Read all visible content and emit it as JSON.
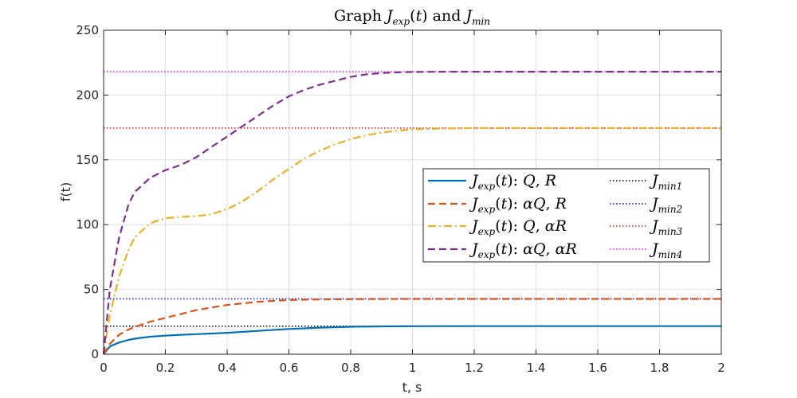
{
  "chart_data": {
    "type": "line",
    "title": "Graph J_exp(t) and J_min",
    "xlabel": "t, s",
    "ylabel": "f(t)",
    "xlim": [
      0,
      2
    ],
    "ylim": [
      0,
      250
    ],
    "xticks": [
      0,
      0.2,
      0.4,
      0.6,
      0.8,
      1,
      1.2,
      1.4,
      1.6,
      1.8,
      2
    ],
    "xtick_labels": [
      "0",
      "0.2",
      "0.4",
      "0.6",
      "0.8",
      "1",
      "1.2",
      "1.4",
      "1.6",
      "1.8",
      "2"
    ],
    "yticks": [
      0,
      50,
      100,
      150,
      200,
      250
    ],
    "ytick_labels": [
      "0",
      "50",
      "100",
      "150",
      "200",
      "250"
    ],
    "grid": true,
    "legend_position": "center-right",
    "series": [
      {
        "name": "J_exp(t): Q, R",
        "color": "#0072BD",
        "style": "solid",
        "x": [
          0,
          0.02,
          0.05,
          0.08,
          0.1,
          0.15,
          0.2,
          0.25,
          0.3,
          0.4,
          0.5,
          0.6,
          0.7,
          0.8,
          0.9,
          1.0,
          1.2,
          1.5,
          2.0
        ],
        "y": [
          0,
          6,
          9,
          11,
          12,
          13.5,
          14.3,
          15,
          15.5,
          16.5,
          18,
          19.5,
          20.5,
          21.2,
          21.5,
          21.6,
          21.7,
          21.7,
          21.7
        ]
      },
      {
        "name": "J_exp(t): αQ, R",
        "color": "#D95319",
        "style": "dashed",
        "x": [
          0,
          0.02,
          0.05,
          0.08,
          0.1,
          0.15,
          0.2,
          0.3,
          0.4,
          0.5,
          0.6,
          0.7,
          0.8,
          0.9,
          1.0,
          1.2,
          1.5,
          2.0
        ],
        "y": [
          0,
          8,
          15,
          19,
          21,
          25,
          28,
          34,
          38,
          40.5,
          41.8,
          42.3,
          42.5,
          42.6,
          42.7,
          42.7,
          42.7,
          42.7
        ]
      },
      {
        "name": "J_exp(t): Q, αR",
        "color": "#EDB120",
        "style": "dashdot",
        "x": [
          0,
          0.02,
          0.05,
          0.08,
          0.1,
          0.15,
          0.2,
          0.25,
          0.3,
          0.35,
          0.4,
          0.45,
          0.5,
          0.55,
          0.6,
          0.65,
          0.7,
          0.75,
          0.8,
          0.85,
          0.9,
          0.95,
          1.0,
          1.1,
          1.2,
          1.5,
          2.0
        ],
        "y": [
          0,
          30,
          60,
          80,
          90,
          101,
          105,
          106,
          106.5,
          108,
          112,
          118,
          126,
          135,
          143,
          151,
          157,
          162,
          166,
          169,
          171,
          172.5,
          173.5,
          174.2,
          174.5,
          174.5,
          174.5
        ]
      },
      {
        "name": "J_exp(t): αQ, αR",
        "color": "#7E2F8E",
        "style": "dashed",
        "x": [
          0,
          0.02,
          0.05,
          0.08,
          0.1,
          0.15,
          0.2,
          0.25,
          0.3,
          0.35,
          0.4,
          0.45,
          0.5,
          0.55,
          0.6,
          0.65,
          0.7,
          0.75,
          0.8,
          0.85,
          0.9,
          0.95,
          1.0,
          1.1,
          1.2,
          1.5,
          2.0
        ],
        "y": [
          0,
          50,
          90,
          115,
          125,
          136,
          142,
          146,
          152,
          160,
          168,
          176,
          184,
          192,
          199,
          204,
          208,
          211,
          214,
          216,
          217,
          217.5,
          217.8,
          218,
          218,
          218,
          218
        ]
      },
      {
        "name": "J_min1",
        "color": "#000000",
        "style": "dotted",
        "x": [
          0,
          2
        ],
        "y": [
          21.7,
          21.7
        ]
      },
      {
        "name": "J_min2",
        "color": "#0000FF",
        "style": "dotted",
        "x": [
          0,
          2
        ],
        "y": [
          42.7,
          42.7
        ]
      },
      {
        "name": "J_min3",
        "color": "#FF0000",
        "style": "dotted",
        "x": [
          0,
          2
        ],
        "y": [
          174.5,
          174.5
        ]
      },
      {
        "name": "J_min4",
        "color": "#FF00FF",
        "style": "dotted",
        "x": [
          0,
          2
        ],
        "y": [
          218,
          218
        ]
      }
    ]
  }
}
